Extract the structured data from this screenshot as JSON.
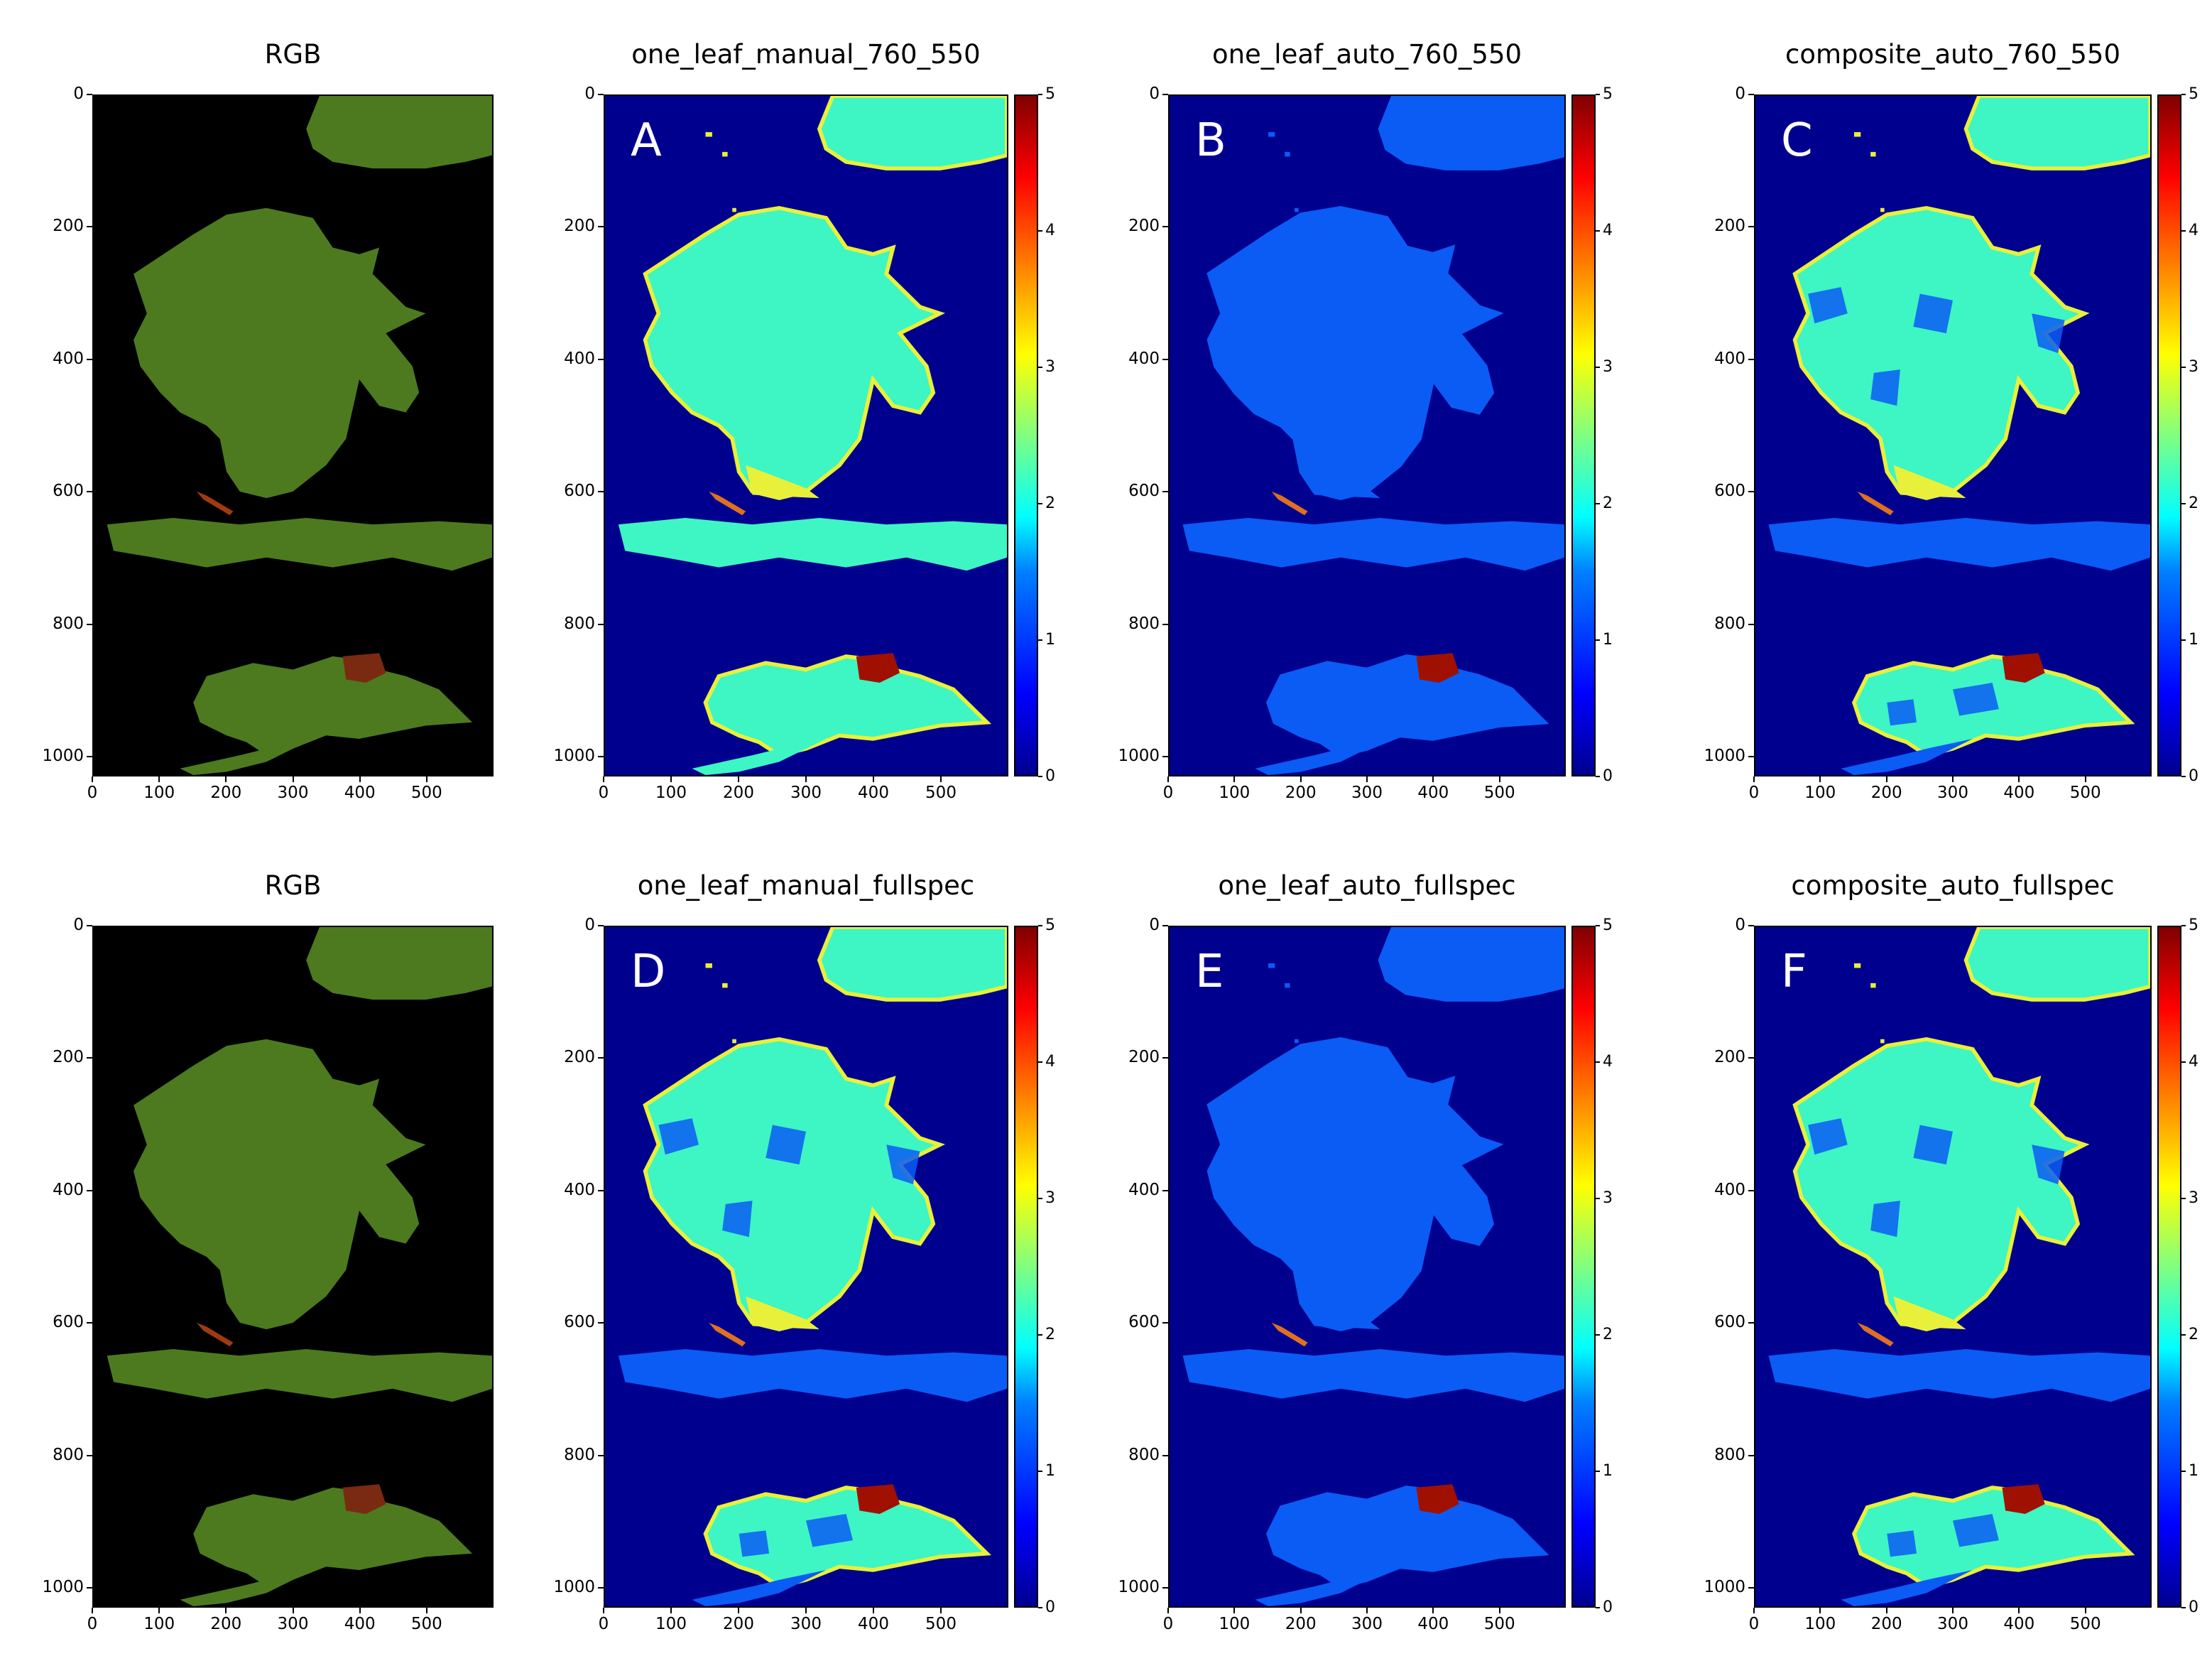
{
  "figure": {
    "panels": [
      {
        "id": "rgb1",
        "title": "RGB",
        "letter": "",
        "type": "rgb",
        "xticks": [
          "0",
          "100",
          "200",
          "300",
          "400",
          "500"
        ],
        "yticks": [
          "0",
          "200",
          "400",
          "600",
          "800",
          "1000"
        ],
        "colorbar": false
      },
      {
        "id": "A",
        "title": "one_leaf_manual_760_550",
        "letter": "A",
        "type": "map",
        "scheme": "manual760",
        "xticks": [
          "0",
          "100",
          "200",
          "300",
          "400",
          "500"
        ],
        "yticks": [
          "0",
          "200",
          "400",
          "600",
          "800",
          "1000"
        ],
        "colorbar": true
      },
      {
        "id": "B",
        "title": "one_leaf_auto_760_550",
        "letter": "B",
        "type": "map",
        "scheme": "auto",
        "xticks": [
          "0",
          "100",
          "200",
          "300",
          "400",
          "500"
        ],
        "yticks": [
          "0",
          "200",
          "400",
          "600",
          "800",
          "1000"
        ],
        "colorbar": true
      },
      {
        "id": "C",
        "title": "composite_auto_760_550",
        "letter": "C",
        "type": "map",
        "scheme": "composite",
        "xticks": [
          "0",
          "100",
          "200",
          "300",
          "400",
          "500"
        ],
        "yticks": [
          "0",
          "200",
          "400",
          "600",
          "800",
          "1000"
        ],
        "colorbar": true
      },
      {
        "id": "rgb2",
        "title": "RGB",
        "letter": "",
        "type": "rgb",
        "xticks": [
          "0",
          "100",
          "200",
          "300",
          "400",
          "500"
        ],
        "yticks": [
          "0",
          "200",
          "400",
          "600",
          "800",
          "1000"
        ],
        "colorbar": false
      },
      {
        "id": "D",
        "title": "one_leaf_manual_fullspec",
        "letter": "D",
        "type": "map",
        "scheme": "manualfull",
        "xticks": [
          "0",
          "100",
          "200",
          "300",
          "400",
          "500"
        ],
        "yticks": [
          "0",
          "200",
          "400",
          "600",
          "800",
          "1000"
        ],
        "colorbar": true
      },
      {
        "id": "E",
        "title": "one_leaf_auto_fullspec",
        "letter": "E",
        "type": "map",
        "scheme": "auto",
        "xticks": [
          "0",
          "100",
          "200",
          "300",
          "400",
          "500"
        ],
        "yticks": [
          "0",
          "200",
          "400",
          "600",
          "800",
          "1000"
        ],
        "colorbar": true
      },
      {
        "id": "F",
        "title": "composite_auto_fullspec",
        "letter": "F",
        "type": "map",
        "scheme": "composite",
        "xticks": [
          "0",
          "100",
          "200",
          "300",
          "400",
          "500"
        ],
        "yticks": [
          "0",
          "200",
          "400",
          "600",
          "800",
          "1000"
        ],
        "colorbar": true
      }
    ],
    "colorbar_ticks": [
      "0",
      "1",
      "2",
      "3",
      "4",
      "5"
    ],
    "colors": {
      "background_map": "#00008f",
      "rgb_background": "#000000",
      "leaf_rgb": "#4d7a1e",
      "cyan_value": "#3ef5c4",
      "blue_value": "#0a5cf5",
      "yellow_value": "#e8f03a",
      "red_value": "#a01000"
    }
  }
}
